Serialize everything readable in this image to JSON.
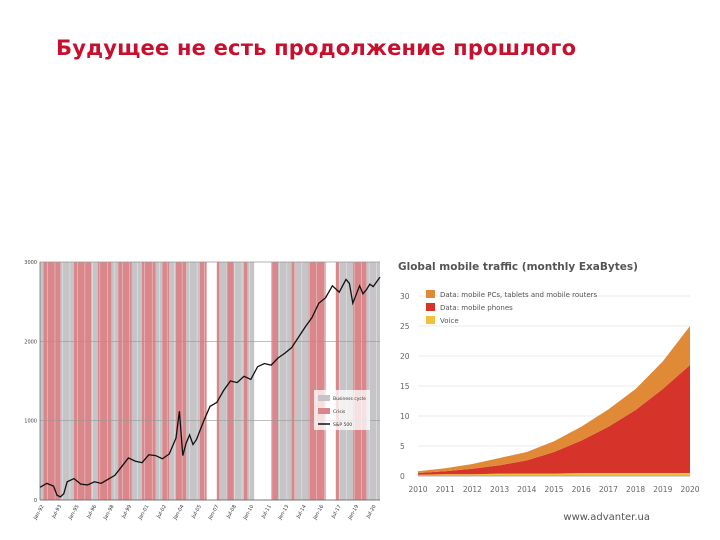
{
  "slide": {
    "title": "Будущее не есть продолжение прошлого",
    "footer": "www.advanter.ua"
  },
  "colors": {
    "title": "#c8102e",
    "recession_band": "#d9878a",
    "gray_band": "#c5c5c8",
    "index_line": "#111111",
    "data_other": "#e08a38",
    "data_phones": "#d6332b",
    "voice": "#f0c23c"
  },
  "chart_data": [
    {
      "type": "line",
      "y_ticks": [
        "3000",
        "2000",
        "1000",
        "0"
      ],
      "y_tick_values": [
        3000,
        2000,
        1000,
        0
      ],
      "ylim": [
        0,
        3000
      ],
      "xlim": [
        0,
        100
      ],
      "legend": {
        "placement": "lower-right",
        "entries": [
          {
            "label": "Business cycle",
            "swatch": "gray"
          },
          {
            "label": "Crisis",
            "swatch": "recession"
          },
          {
            "label": "S&P 500",
            "swatch": "line"
          }
        ]
      },
      "series": [
        {
          "name": "S&P 500",
          "x": [
            0,
            2,
            4,
            5,
            6,
            7,
            8,
            10,
            12,
            14,
            16,
            18,
            20,
            22,
            24,
            26,
            28,
            30,
            32,
            34,
            36,
            38,
            40,
            41,
            42,
            43,
            44,
            45,
            46,
            48,
            50,
            52,
            54,
            56,
            58,
            60,
            62,
            64,
            66,
            68,
            70,
            72,
            74,
            76,
            78,
            80,
            82,
            84,
            86,
            88,
            90,
            91,
            92,
            94,
            95,
            96,
            97,
            98,
            99,
            100
          ],
          "y": [
            160,
            210,
            175,
            60,
            40,
            80,
            230,
            270,
            200,
            190,
            230,
            210,
            260,
            310,
            420,
            530,
            490,
            470,
            570,
            560,
            520,
            580,
            780,
            1120,
            560,
            720,
            820,
            700,
            760,
            980,
            1180,
            1230,
            1380,
            1500,
            1480,
            1560,
            1520,
            1680,
            1720,
            1700,
            1790,
            1850,
            1920,
            2050,
            2180,
            2300,
            2480,
            2550,
            2700,
            2620,
            2780,
            2730,
            2480,
            2700,
            2600,
            2650,
            2720,
            2690,
            2750,
            2810
          ]
        }
      ],
      "x_tick_labels": [
        "Jan-92",
        "Jul-93",
        "Jan-95",
        "Jul-96",
        "Jan-98",
        "Jul-99",
        "Jan-01",
        "Jul-02",
        "Jan-04",
        "Jul-05",
        "Jan-07",
        "Jul-08",
        "Jan-10",
        "Jul-11",
        "Jan-13",
        "Jul-14",
        "Jan-16",
        "Jul-17",
        "Jan-19",
        "Jul-20"
      ],
      "recession_bands": [
        [
          1,
          6
        ],
        [
          10,
          15
        ],
        [
          17,
          21
        ],
        [
          23,
          27
        ],
        [
          30,
          34
        ],
        [
          36,
          38
        ],
        [
          40,
          43
        ],
        [
          47,
          49
        ],
        [
          52,
          53
        ],
        [
          55,
          57
        ],
        [
          60,
          61
        ],
        [
          68,
          70
        ],
        [
          74,
          75
        ],
        [
          79,
          84
        ],
        [
          87,
          88
        ],
        [
          92,
          96
        ]
      ],
      "gray_bands": [
        [
          0,
          1
        ],
        [
          6,
          10
        ],
        [
          15,
          17
        ],
        [
          21,
          23
        ],
        [
          27,
          30
        ],
        [
          34,
          36
        ],
        [
          38,
          40
        ],
        [
          43,
          47
        ],
        [
          53,
          55
        ],
        [
          57,
          60
        ],
        [
          61,
          63
        ],
        [
          70,
          74
        ],
        [
          75,
          79
        ],
        [
          88,
          92
        ],
        [
          96,
          100
        ]
      ],
      "grid": true
    },
    {
      "type": "area",
      "title": "Global mobile traffic (monthly ExaBytes)",
      "categories": [
        "2010",
        "2011",
        "2012",
        "2013",
        "2014",
        "2015",
        "2016",
        "2017",
        "2018",
        "2019",
        "2020"
      ],
      "x": [
        2010,
        2011,
        2012,
        2013,
        2014,
        2015,
        2016,
        2017,
        2018,
        2019,
        2020
      ],
      "ylim": [
        0,
        30
      ],
      "y_ticks": [
        30,
        25,
        20,
        15,
        10,
        5,
        0
      ],
      "grid": true,
      "legend_placement": "top-left",
      "series": [
        {
          "name": "Voice",
          "values": [
            0.2,
            0.3,
            0.3,
            0.4,
            0.4,
            0.4,
            0.5,
            0.5,
            0.5,
            0.5,
            0.5
          ]
        },
        {
          "name": "Data: mobile phones",
          "values": [
            0.3,
            0.5,
            0.9,
            1.4,
            2.2,
            3.6,
            5.4,
            7.7,
            10.5,
            14.0,
            18.0
          ]
        },
        {
          "name": "Data: mobile PCs, tablets and mobile routers",
          "values": [
            0.3,
            0.5,
            0.8,
            1.2,
            1.4,
            1.8,
            2.3,
            2.9,
            3.5,
            4.6,
            6.5
          ]
        }
      ]
    }
  ]
}
